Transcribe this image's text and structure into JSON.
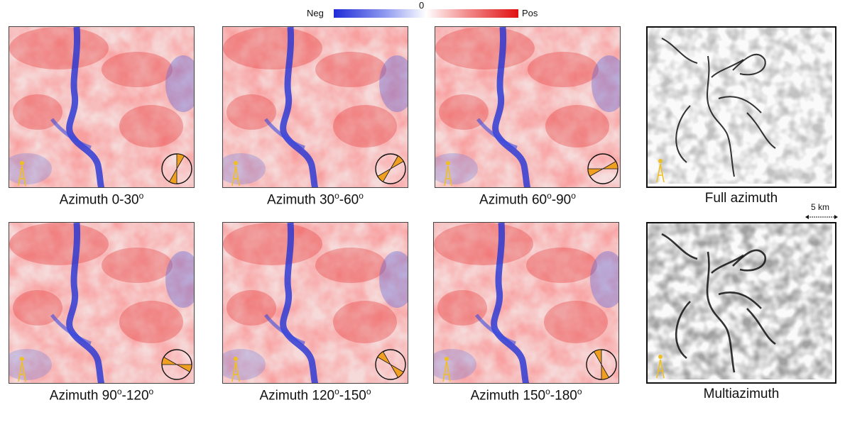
{
  "colorbar": {
    "neg_label": "Neg",
    "zero_label": "0",
    "pos_label": "Pos"
  },
  "colors": {
    "negative": "#1f2bd6",
    "positive": "#e01010",
    "wedge": "#f0a020",
    "well": "#f0c020"
  },
  "panels": [
    {
      "caption_pre": "Azimuth 0-30",
      "sup1": "o",
      "mid": "",
      "sup2": "",
      "wedge_deg": [
        0,
        30
      ]
    },
    {
      "caption_pre": "Azimuth 30",
      "sup1": "o",
      "mid": "-60",
      "sup2": "o",
      "wedge_deg": [
        30,
        60
      ]
    },
    {
      "caption_pre": "Azimuth 60",
      "sup1": "o",
      "mid": "-90",
      "sup2": "o",
      "wedge_deg": [
        60,
        90
      ]
    },
    {
      "caption_pre": "Azimuth 90",
      "sup1": "o",
      "mid": "-120",
      "sup2": "o",
      "wedge_deg": [
        90,
        120
      ]
    },
    {
      "caption_pre": "Azimuth 120",
      "sup1": "o",
      "mid": "-150",
      "sup2": "o",
      "wedge_deg": [
        120,
        150
      ]
    },
    {
      "caption_pre": "Azimuth 150",
      "sup1": "o",
      "mid": "-180",
      "sup2": "o",
      "wedge_deg": [
        150,
        180
      ]
    }
  ],
  "attribute_panels": [
    {
      "caption": "Full azimuth"
    },
    {
      "caption": "Multiazimuth"
    }
  ],
  "scale": {
    "label": "5 km"
  }
}
